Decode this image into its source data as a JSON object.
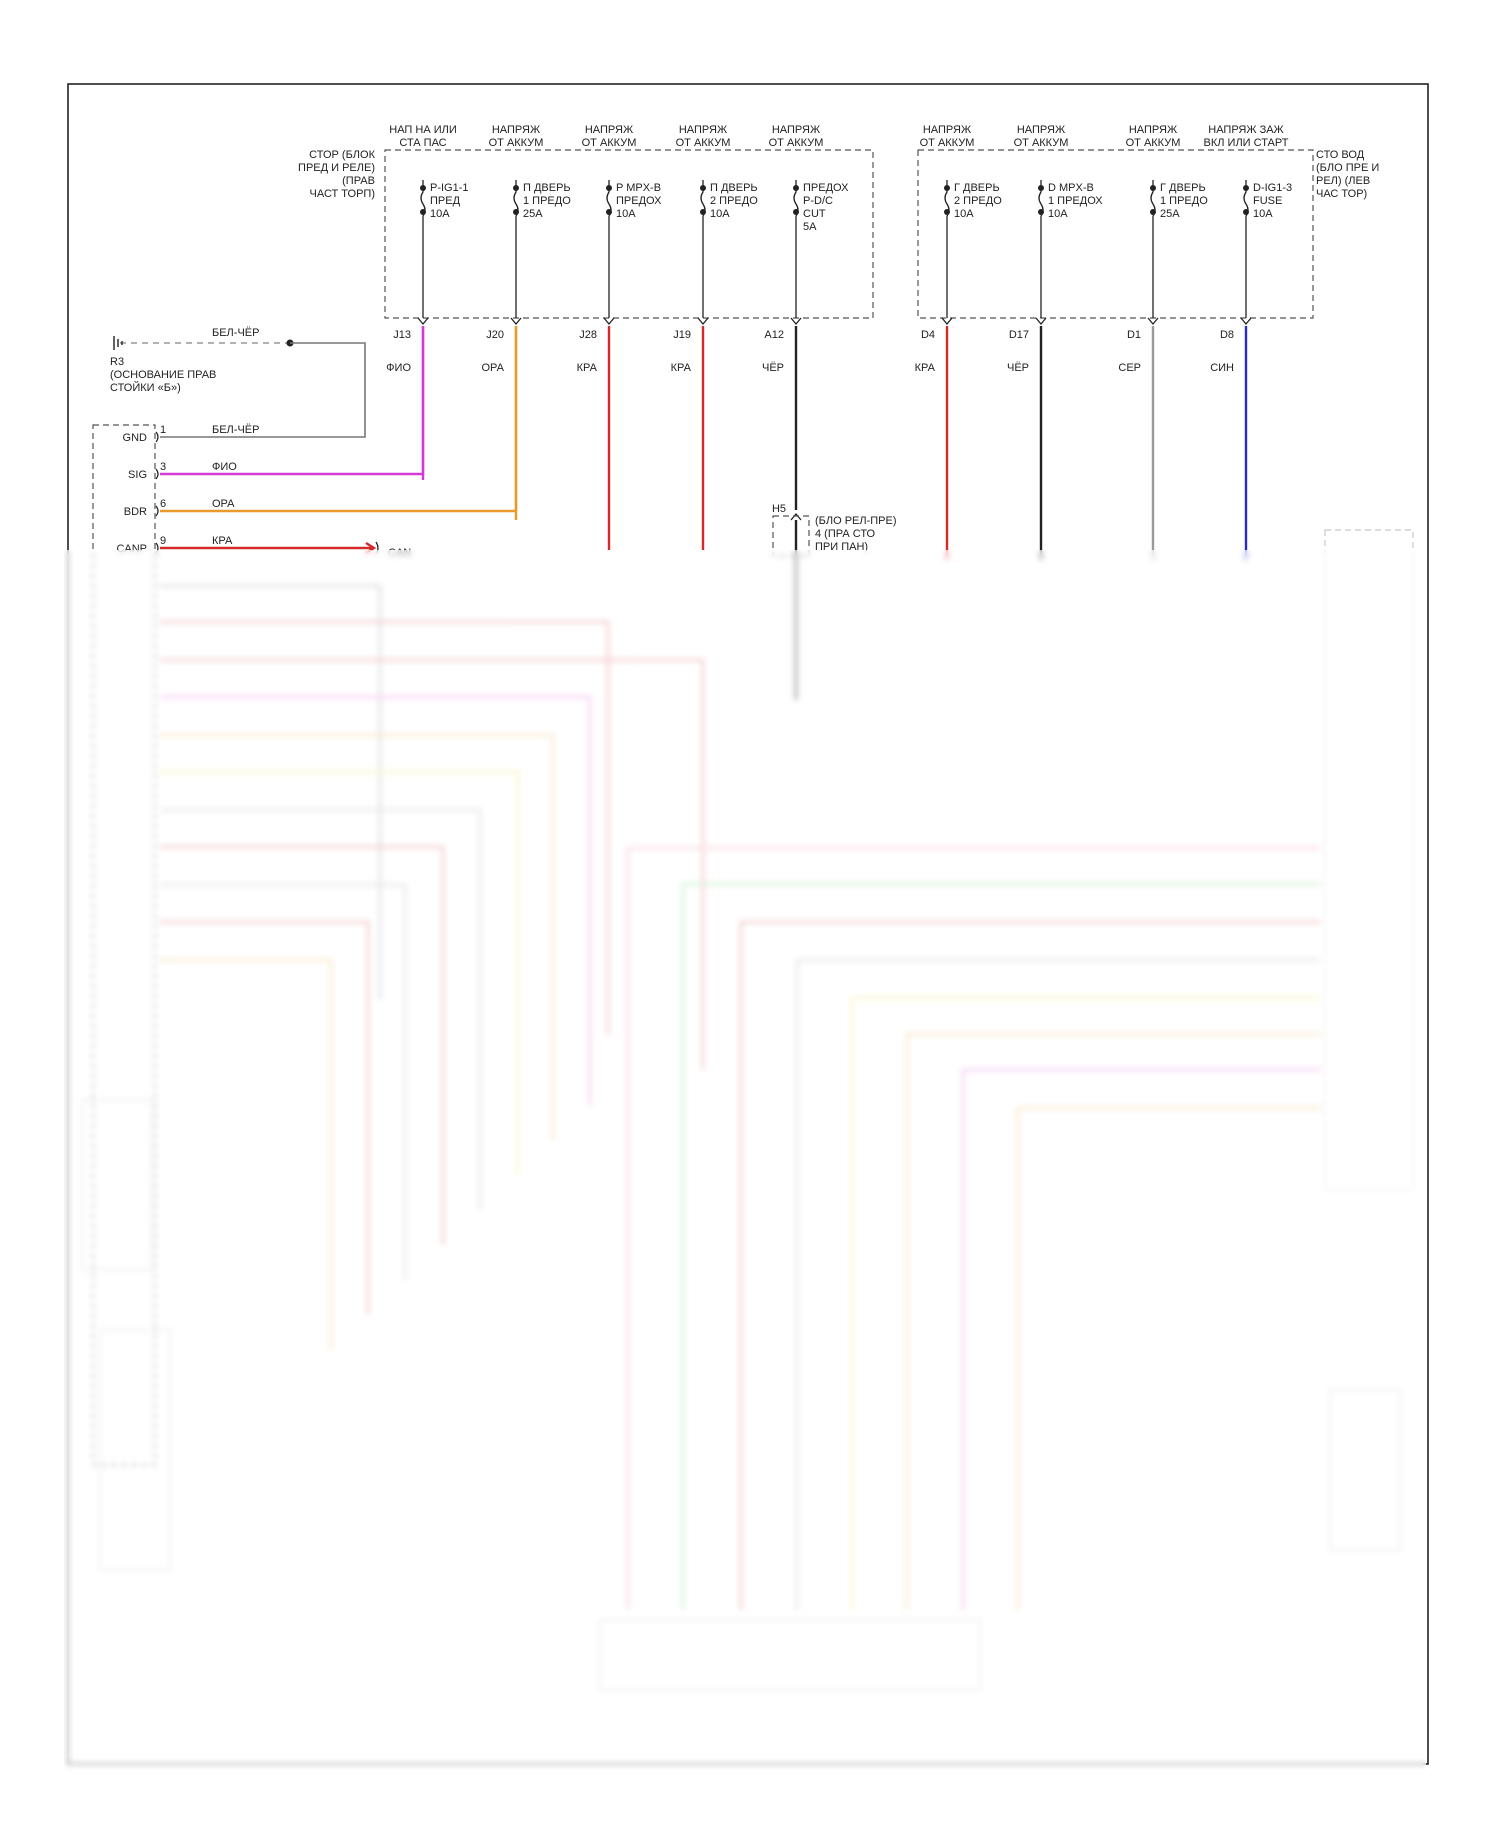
{
  "fuse_boxes": [
    {
      "label": [
        "СТОР (БЛОК",
        "ПРЕД И РЕЛЕ)",
        "(ПРАВ",
        "ЧАСТ ТОРП)"
      ],
      "fuses": [
        {
          "supply": [
            "НАП НА ИЛИ",
            "СТА ПАС"
          ],
          "name": [
            "P-IG1-1",
            "ПРЕД",
            "10A"
          ],
          "pin": "J13",
          "wire": "ФИО",
          "color": "#d63ad6"
        },
        {
          "supply": [
            "НАПРЯЖ",
            "ОТ АККУМ"
          ],
          "name": [
            "П ДВЕРЬ",
            "1 ПРЕДО",
            "25A"
          ],
          "pin": "J20",
          "wire": "ОРА",
          "color": "#e89a2a"
        },
        {
          "supply": [
            "НАПРЯЖ",
            "ОТ АККУМ"
          ],
          "name": [
            "P MPX-B",
            "ПРЕДОХ",
            "10A"
          ],
          "pin": "J28",
          "wire": "КРА",
          "color": "#d42a2a"
        },
        {
          "supply": [
            "НАПРЯЖ",
            "ОТ АККУМ"
          ],
          "name": [
            "П ДВЕРЬ",
            "2 ПРЕДО",
            "10A"
          ],
          "pin": "J19",
          "wire": "КРА",
          "color": "#d42a2a"
        },
        {
          "supply": [
            "НАПРЯЖ",
            "ОТ АККУМ"
          ],
          "name": [
            "ПРЕДОХ",
            "P-D/C",
            "CUT",
            "5A"
          ],
          "pin": "A12",
          "wire": "ЧЁР",
          "color": "#222222"
        }
      ]
    },
    {
      "label": [
        "СТО ВОД",
        "(БЛО ПРЕ И",
        "РЕЛ) (ЛЕВ",
        "ЧАС ТОР)"
      ],
      "fuses": [
        {
          "supply": [
            "НАПРЯЖ",
            "ОТ АККУМ"
          ],
          "name": [
            "Г ДВЕРЬ",
            "2 ПРЕДО",
            "10A"
          ],
          "pin": "D4",
          "wire": "КРА",
          "color": "#d42a2a"
        },
        {
          "supply": [
            "НАПРЯЖ",
            "ОТ АККУМ"
          ],
          "name": [
            "D MPX-B",
            "1 ПРЕДОХ",
            "10A"
          ],
          "pin": "D17",
          "wire": "ЧЁР",
          "color": "#222222"
        },
        {
          "supply": [
            "НАПРЯЖ",
            "ОТ АККУМ"
          ],
          "name": [
            "Г ДВЕРЬ",
            "1 ПРЕДО",
            "25A"
          ],
          "pin": "D1",
          "wire": "СЕР",
          "color": "#9a9a9a"
        },
        {
          "supply": [
            "НАПРЯЖ ЗАЖ",
            "ВКЛ ИЛИ СТАРТ"
          ],
          "name": [
            "D-IG1-3",
            "FUSE",
            "10A"
          ],
          "pin": "D8",
          "wire": "СИН",
          "color": "#2a2ac8"
        }
      ]
    }
  ],
  "ground": {
    "wire": "БЕЛ-ЧЁР",
    "label": [
      "R3",
      "(ОСНОВАНИЕ ПРАВ",
      "СТОЙКИ «Б»)"
    ]
  },
  "module_pins": [
    {
      "name": "GND",
      "num": "1",
      "wire": "БЕЛ-ЧЁР",
      "color": "#777777"
    },
    {
      "name": "SIG",
      "num": "3",
      "wire": "ФИО",
      "color": "#d63ad6"
    },
    {
      "name": "BDR",
      "num": "6",
      "wire": "ОРА",
      "color": "#e89a2a"
    },
    {
      "name": "CANP",
      "num": "9",
      "wire": "КРА",
      "color": "#d42a2a"
    }
  ],
  "can_label": "CAN",
  "relay_connector": {
    "pin": "H5",
    "label": [
      "(БЛО РЕЛ-ПРЕ)",
      "4 (ПРА СТО",
      "ПРИ ПАН)"
    ]
  },
  "colors": {
    "frame": "#222222",
    "violet": "#d63ad6",
    "orange": "#e89a2a",
    "red": "#d42a2a",
    "black": "#222222",
    "gray": "#9a9a9a",
    "blue": "#2a2ac8",
    "white_black": "#777777",
    "yellow": "#e8e02a",
    "green": "#4ac84a",
    "pink": "#e86a8a"
  }
}
